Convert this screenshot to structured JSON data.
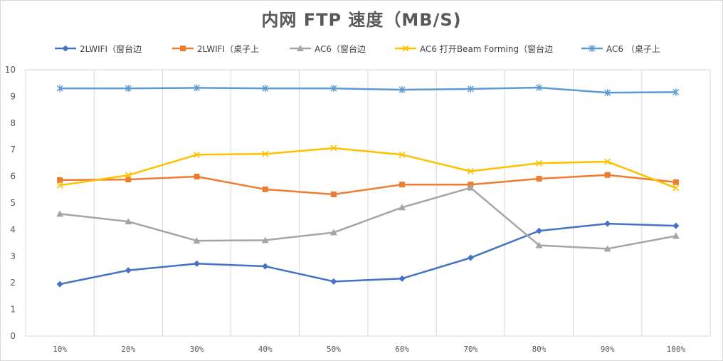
{
  "chart_data": {
    "type": "line",
    "title": "内网 FTP 速度（MB/S)",
    "xlabel": "",
    "ylabel": "",
    "categories": [
      "10%",
      "20%",
      "30%",
      "40%",
      "50%",
      "60%",
      "70%",
      "80%",
      "90%",
      "100%"
    ],
    "ylim": [
      0,
      10
    ],
    "yticks": [
      0,
      1,
      2,
      3,
      4,
      5,
      6,
      7,
      8,
      9,
      10
    ],
    "grid": "vertical",
    "legend_position": "top",
    "series": [
      {
        "name": "2LWIFI（窗台边",
        "color": "#4472c4",
        "marker": "diamond",
        "values": [
          1.95,
          2.47,
          2.72,
          2.62,
          2.05,
          2.16,
          2.94,
          3.95,
          4.22,
          4.14
        ]
      },
      {
        "name": "2LWIFI（桌子上",
        "color": "#ed7d31",
        "marker": "square",
        "values": [
          5.86,
          5.88,
          5.99,
          5.51,
          5.32,
          5.69,
          5.69,
          5.91,
          6.05,
          5.78
        ]
      },
      {
        "name": "AC6（窗台边",
        "color": "#a5a5a5",
        "marker": "triangle",
        "values": [
          4.59,
          4.3,
          3.58,
          3.6,
          3.89,
          4.83,
          5.57,
          3.41,
          3.28,
          3.76
        ]
      },
      {
        "name": "AC6 打开Beam Forming（窗台边",
        "color": "#ffc000",
        "marker": "x",
        "values": [
          5.66,
          6.04,
          6.81,
          6.84,
          7.06,
          6.81,
          6.19,
          6.49,
          6.55,
          5.56
        ]
      },
      {
        "name": "AC6 （桌子上",
        "color": "#5b9bd5",
        "marker": "star",
        "values": [
          9.3,
          9.3,
          9.32,
          9.3,
          9.3,
          9.25,
          9.28,
          9.33,
          9.14,
          9.16
        ]
      }
    ]
  }
}
